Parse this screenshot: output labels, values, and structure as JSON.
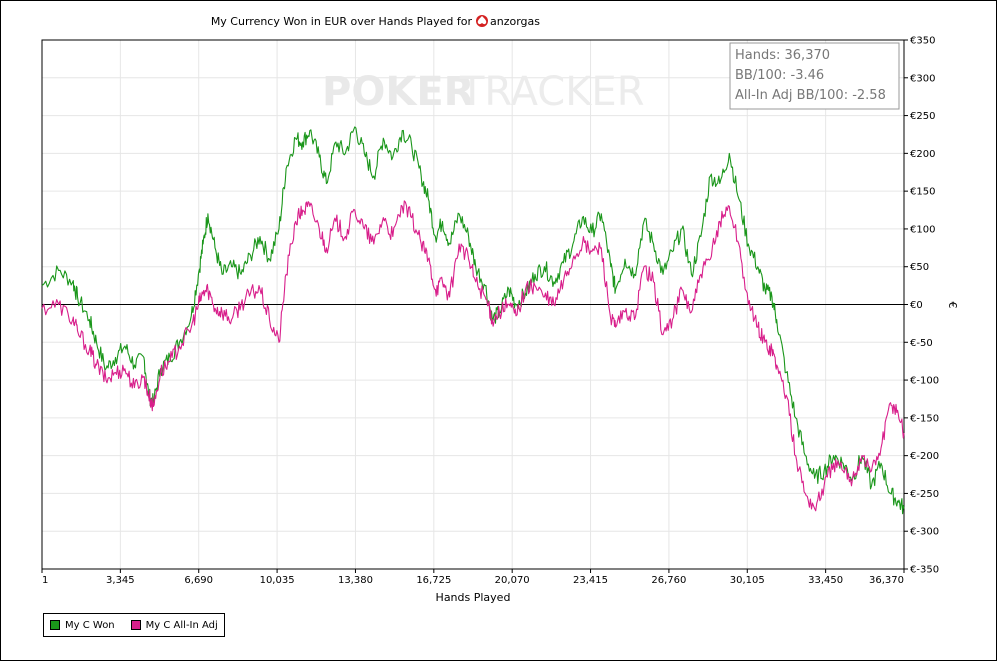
{
  "chart_data": {
    "type": "line",
    "title": "My Currency Won in EUR over Hands Played for",
    "player": "anzorgas",
    "xlabel": "Hands Played",
    "ylabel": "€",
    "x_ticks": [
      "1",
      "3,345",
      "6,690",
      "10,035",
      "13,380",
      "16,725",
      "20,070",
      "23,415",
      "26,760",
      "30,105",
      "33,450",
      "36,370"
    ],
    "y_ticks": [
      "€350",
      "€300",
      "€250",
      "€200",
      "€150",
      "€100",
      "€50",
      "€0",
      "€-50",
      "€-100",
      "€-150",
      "€-200",
      "€-250",
      "€-300",
      "€-350"
    ],
    "xlim": [
      1,
      36370
    ],
    "ylim": [
      -350,
      350
    ],
    "grid": true,
    "legend_position": "bottom-left",
    "stats": [
      "Hands: 36,370",
      "BB/100: -3.46",
      "All-In Adj BB/100: -2.58"
    ],
    "watermark": {
      "part1": "POKER",
      "part2": "TRACKER"
    },
    "series": [
      {
        "name": "My C Won",
        "color": "#1a961a",
        "x": [
          1,
          700,
          1300,
          1500,
          2000,
          2300,
          2700,
          3100,
          3500,
          3900,
          4300,
          4500,
          4700,
          5000,
          5400,
          5800,
          6300,
          6600,
          6800,
          7000,
          7300,
          7600,
          8000,
          8400,
          8800,
          9200,
          9600,
          10000,
          10300,
          10700,
          11000,
          11300,
          11700,
          12000,
          12400,
          12800,
          13200,
          13600,
          14000,
          14400,
          14800,
          15200,
          15600,
          16000,
          16300,
          16600,
          16900,
          17200,
          17600,
          18000,
          18300,
          18700,
          19000,
          19300,
          19700,
          20000,
          20400,
          20800,
          21200,
          21600,
          22000,
          22400,
          22800,
          23200,
          23600,
          24000,
          24200,
          24600,
          25000,
          25400,
          25800,
          26200,
          26600,
          27000,
          27400,
          27800,
          28200,
          28600,
          29000,
          29400,
          29800,
          30200,
          30500,
          30800,
          31000,
          31400,
          31800,
          32200,
          32600,
          33000,
          33400,
          33800,
          34200,
          34600,
          35000,
          35400,
          35800,
          36100,
          36370
        ],
        "values": [
          25,
          45,
          30,
          10,
          -20,
          -50,
          -85,
          -70,
          -55,
          -80,
          -70,
          -120,
          -130,
          -85,
          -70,
          -50,
          -15,
          40,
          80,
          120,
          75,
          40,
          50,
          40,
          65,
          90,
          60,
          100,
          180,
          220,
          215,
          230,
          195,
          160,
          215,
          200,
          235,
          200,
          170,
          220,
          195,
          230,
          210,
          170,
          140,
          90,
          110,
          80,
          120,
          90,
          50,
          25,
          -20,
          -10,
          20,
          0,
          15,
          40,
          50,
          30,
          55,
          80,
          115,
          95,
          120,
          50,
          20,
          60,
          40,
          110,
          80,
          40,
          70,
          100,
          40,
          90,
          170,
          160,
          200,
          140,
          80,
          50,
          20,
          10,
          -20,
          -90,
          -150,
          -200,
          -230,
          -220,
          -200,
          -210,
          -230,
          -200,
          -240,
          -210,
          -250,
          -260,
          -270
        ]
      },
      {
        "name": "My C All-In Adj",
        "color": "#d81f8b",
        "x": [
          1,
          700,
          1300,
          1500,
          2000,
          2300,
          2700,
          3100,
          3500,
          3900,
          4300,
          4500,
          4700,
          5000,
          5400,
          5800,
          6300,
          6600,
          6800,
          7000,
          7300,
          7600,
          8000,
          8400,
          8800,
          9200,
          9600,
          10000,
          10300,
          10700,
          11000,
          11300,
          11700,
          12000,
          12400,
          12800,
          13200,
          13600,
          14000,
          14400,
          14800,
          15200,
          15600,
          16000,
          16300,
          16600,
          16900,
          17200,
          17600,
          18000,
          18300,
          18700,
          19000,
          19300,
          19700,
          20000,
          20400,
          20800,
          21200,
          21600,
          22000,
          22400,
          22800,
          23200,
          23600,
          24000,
          24200,
          24600,
          25000,
          25400,
          25800,
          26200,
          26600,
          27000,
          27400,
          27800,
          28200,
          28600,
          29000,
          29400,
          29800,
          30200,
          30500,
          30800,
          31000,
          31400,
          31800,
          32200,
          32600,
          33000,
          33400,
          33800,
          34200,
          34600,
          35000,
          35400,
          35800,
          36100,
          36370
        ],
        "values": [
          -5,
          0,
          -20,
          -35,
          -60,
          -80,
          -100,
          -90,
          -85,
          -110,
          -95,
          -120,
          -135,
          -90,
          -75,
          -55,
          -30,
          0,
          15,
          20,
          -5,
          -10,
          -20,
          0,
          15,
          20,
          -20,
          -50,
          40,
          110,
          125,
          130,
          100,
          75,
          110,
          90,
          125,
          100,
          80,
          115,
          90,
          130,
          115,
          80,
          60,
          20,
          30,
          10,
          80,
          60,
          30,
          10,
          -20,
          -10,
          0,
          -15,
          20,
          25,
          10,
          0,
          30,
          60,
          80,
          70,
          75,
          -20,
          -30,
          -10,
          -20,
          50,
          30,
          -40,
          -20,
          20,
          -10,
          40,
          60,
          110,
          130,
          80,
          0,
          -30,
          -50,
          -60,
          -80,
          -120,
          -200,
          -250,
          -270,
          -240,
          -210,
          -220,
          -230,
          -200,
          -220,
          -190,
          -130,
          -140,
          -170
        ]
      }
    ]
  }
}
